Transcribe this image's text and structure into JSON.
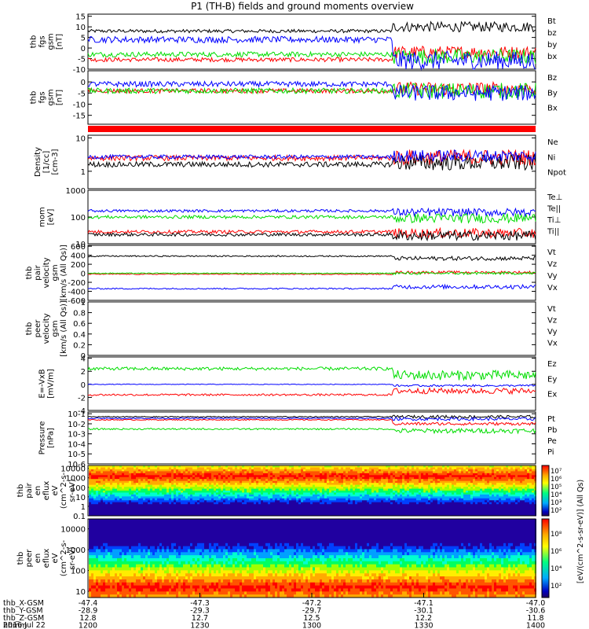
{
  "title": "P1 (TH-B) fields and ground moments overview",
  "colors": {
    "black": "#000000",
    "red": "#ff0000",
    "green": "#00dd00",
    "blue": "#0000ff"
  },
  "chart_data": [
    {
      "type": "line",
      "id": "p1",
      "ylabel": [
        "thb",
        "fgs",
        "gsm",
        "[nT]"
      ],
      "ylim": [
        -10,
        16
      ],
      "yticks": [
        15,
        10,
        5,
        0,
        -5,
        -10
      ],
      "series": [
        {
          "name": "Bt",
          "color": "black",
          "level": 8,
          "noise": 0.8,
          "late_level": 10
        },
        {
          "name": "bz",
          "color": "red",
          "level": -5.5,
          "noise": 1.0,
          "late_level": -2
        },
        {
          "name": "by",
          "color": "green",
          "level": -3,
          "noise": 1.2,
          "late_level": -4
        },
        {
          "name": "bx",
          "color": "blue",
          "level": 4,
          "noise": 1.5,
          "late_level": -6
        }
      ]
    },
    {
      "type": "line",
      "id": "p2",
      "ylabel": [
        "thb",
        "fgs",
        "gsm",
        "[nT]"
      ],
      "ylim": [
        -19,
        5
      ],
      "yticks": [
        0,
        -5,
        -10,
        -15
      ],
      "series": [
        {
          "name": "Bz",
          "color": "red",
          "level": -4,
          "noise": 1.0,
          "late_level": -3
        },
        {
          "name": "By",
          "color": "green",
          "level": -4,
          "noise": 1.2,
          "late_level": -4
        },
        {
          "name": "Bx",
          "color": "blue",
          "level": -1,
          "noise": 1.2,
          "late_level": -5
        }
      ]
    },
    {
      "type": "bar_strip",
      "id": "p3",
      "color": "red"
    },
    {
      "type": "line",
      "id": "p4",
      "ylabel": [
        "Density",
        "[1/cc]",
        "[cm-3]"
      ],
      "log": true,
      "ylim": [
        0.3,
        12
      ],
      "yticks": [
        10.0,
        1.0
      ],
      "series": [
        {
          "name": "Ne",
          "color": "red",
          "level": 2.5,
          "noise": 0.08,
          "late_level": 2.6
        },
        {
          "name": "Ni",
          "color": "black",
          "level": 1.6,
          "noise": 0.08,
          "late_level": 1.8
        },
        {
          "name": "Npot",
          "color": "blue",
          "level": 2.7,
          "noise": 0.06,
          "late_level": 2.9
        }
      ]
    },
    {
      "type": "line",
      "id": "p5",
      "ylabel": [
        "mom",
        "[eV]"
      ],
      "log": true,
      "ylim": [
        10,
        1000
      ],
      "yticks": [
        1000,
        100,
        10
      ],
      "series": [
        {
          "name": "Te⊥",
          "color": "red",
          "level": 28,
          "noise": 0.06,
          "late_level": 25
        },
        {
          "name": "Te||",
          "color": "black",
          "level": 22,
          "noise": 0.06,
          "late_level": 20
        },
        {
          "name": "Ti⊥",
          "color": "blue",
          "level": 170,
          "noise": 0.05,
          "late_level": 150
        },
        {
          "name": "Ti||",
          "color": "green",
          "level": 100,
          "noise": 0.06,
          "late_level": 90
        }
      ]
    },
    {
      "type": "line",
      "id": "p6",
      "ylabel": [
        "thb",
        "pair",
        "velocity",
        "gsm",
        "[km/s (All Qs)]"
      ],
      "ylim": [
        -600,
        620
      ],
      "yticks": [
        600,
        400,
        200,
        0,
        -200,
        -400,
        -600
      ],
      "series": [
        {
          "name": "Vt",
          "color": "black",
          "level": 380,
          "noise": 15,
          "late_level": 330
        },
        {
          "name": "Vz",
          "color": "red",
          "level": -20,
          "noise": 10,
          "late_level": 20
        },
        {
          "name": "Vy",
          "color": "green",
          "level": 0,
          "noise": 10,
          "late_level": 0
        },
        {
          "name": "Vx",
          "color": "blue",
          "level": -340,
          "noise": 15,
          "late_level": -300
        }
      ]
    },
    {
      "type": "line",
      "id": "p7",
      "ylabel": [
        "thb",
        "peer",
        "velocity",
        "gsm",
        "[km/s (All Qs)]"
      ],
      "ylim": [
        0,
        1
      ],
      "yticks": [
        1.0,
        0.8,
        0.6,
        0.4,
        0.2,
        0.0
      ],
      "series": [
        {
          "name": "Vt",
          "color": "black",
          "empty": true
        },
        {
          "name": "Vz",
          "color": "red",
          "empty": true
        },
        {
          "name": "Vy",
          "color": "green",
          "empty": true
        },
        {
          "name": "Vx",
          "color": "blue",
          "empty": true
        }
      ]
    },
    {
      "type": "line",
      "id": "p8",
      "ylabel": [
        "E=-VxB",
        "[mV/m]"
      ],
      "ylim": [
        -4,
        4.2
      ],
      "yticks": [
        4,
        2,
        0,
        -2,
        -4
      ],
      "series": [
        {
          "name": "Ez",
          "color": "red",
          "level": -1.6,
          "noise": 0.15,
          "late_level": -1.0
        },
        {
          "name": "Ey",
          "color": "green",
          "level": 2.4,
          "noise": 0.25,
          "late_level": 1.4
        },
        {
          "name": "Ex",
          "color": "blue",
          "level": 0,
          "noise": 0.05,
          "late_level": -0.2
        }
      ]
    },
    {
      "type": "line",
      "id": "p9",
      "ylabel": [
        "Pressure",
        "[nPa]"
      ],
      "log": true,
      "ylim": [
        1e-06,
        0.15
      ],
      "yticks": [
        0.1,
        0.01,
        0.001,
        0.0001,
        1e-05,
        1e-06
      ],
      "yticklabels": [
        "10-1",
        "10-2",
        "10-3",
        "10-4",
        "10-5",
        "10-6"
      ],
      "series": [
        {
          "name": "Pt",
          "color": "black",
          "level": 0.05,
          "noise": 0.05,
          "late_level": 0.05
        },
        {
          "name": "Pb",
          "color": "red",
          "level": 0.025,
          "noise": 0.05,
          "late_level": 0.01
        },
        {
          "name": "Pe",
          "color": "green",
          "level": 0.003,
          "noise": 0.08,
          "late_level": 0.002
        },
        {
          "name": "Pi",
          "color": "blue",
          "level": 0.035,
          "noise": 0.05,
          "late_level": 0.03
        }
      ]
    },
    {
      "type": "heatmap",
      "id": "p10",
      "ylabel": [
        "thb",
        "pair",
        "en",
        "eflux",
        "eV",
        "(cm^2-s-",
        "sr-eV)"
      ],
      "log": true,
      "ylim": [
        0.1,
        20000
      ],
      "yticks": [
        10000.0,
        1000.0,
        100.0,
        10.0,
        1.0,
        0.1
      ],
      "band_bottom": 5,
      "peak": 1500
    },
    {
      "type": "heatmap",
      "id": "p11",
      "ylabel": [
        "thb",
        "peer",
        "en",
        "eflux",
        "eV",
        "(cm^2-s-",
        "sr-eV)"
      ],
      "log": true,
      "ylim": [
        5,
        30000
      ],
      "yticks": [
        10000,
        1000,
        100,
        10
      ],
      "band_bottom": 5,
      "peak": 15
    }
  ],
  "colorbar": {
    "label": "[eV/(cm^2-s-sr-eV)] (All Qs)",
    "top_ticks": [
      "10⁷",
      "10⁶",
      "10⁵",
      "10⁴",
      "10³",
      "10²"
    ],
    "bottom_ticks": [
      "10⁸",
      "10⁶",
      "10⁴",
      "10²"
    ]
  },
  "xaxis": {
    "rows": [
      {
        "label": "thb_X-GSM",
        "values": [
          "-47.4",
          "-47.3",
          "-47.2",
          "-47.1",
          "-47.0"
        ]
      },
      {
        "label": "thb_Y-GSM",
        "values": [
          "-28.9",
          "-29.3",
          "-29.7",
          "-30.1",
          "-30.6"
        ]
      },
      {
        "label": "thb_Z-GSM",
        "values": [
          "12.8",
          "12.7",
          "12.5",
          "12.2",
          "11.8"
        ]
      },
      {
        "label": "hhmm",
        "values": [
          "1200",
          "1230",
          "1300",
          "1330",
          "1400"
        ]
      }
    ],
    "date": "2016 Jul 22"
  }
}
